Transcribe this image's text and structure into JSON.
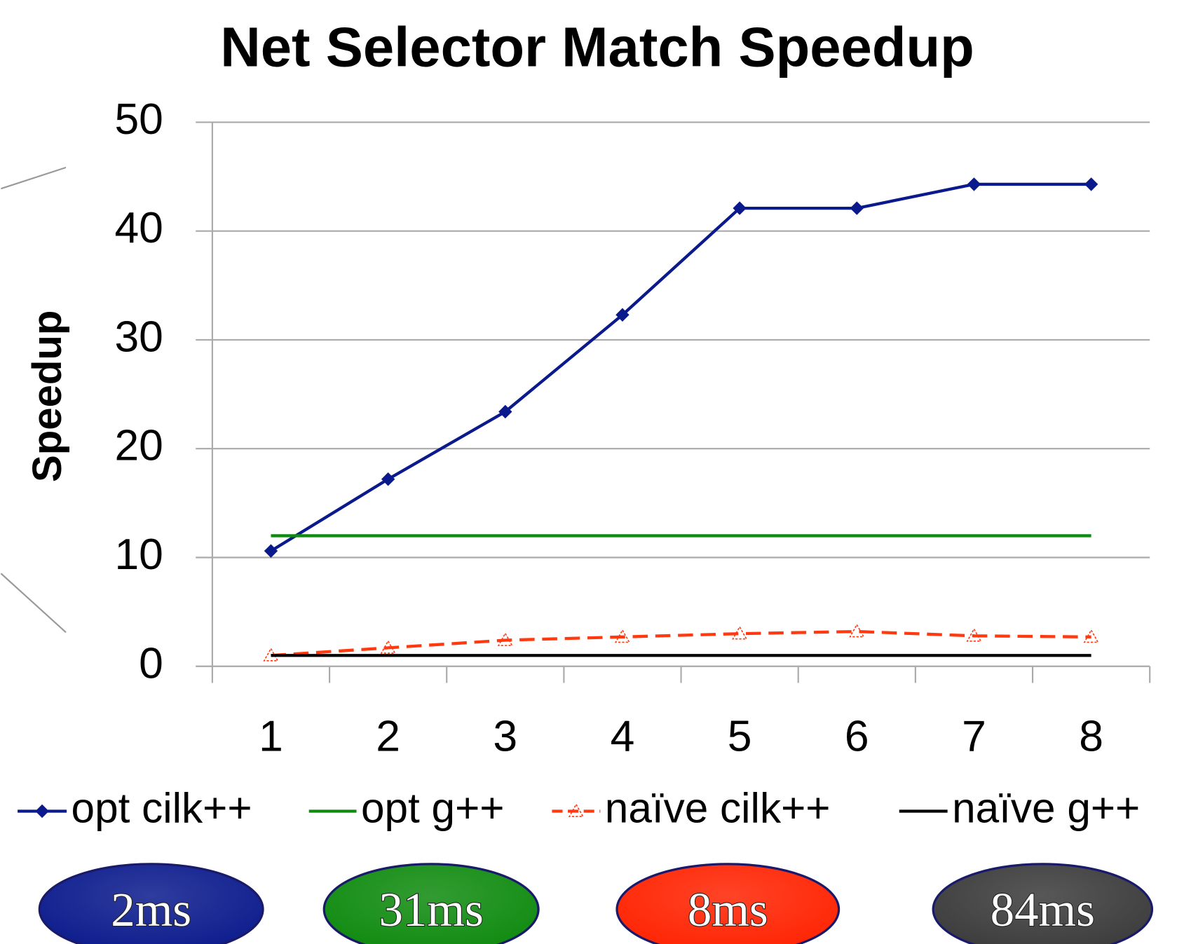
{
  "chart_data": {
    "type": "line",
    "title": "Net Selector Match Speedup",
    "y_label": "Speedup",
    "categories": [
      "1",
      "2",
      "3",
      "4",
      "5",
      "6",
      "7",
      "8"
    ],
    "series": [
      {
        "name": "opt cilk++",
        "color": "#0a1a8c",
        "marker": "diamond",
        "dash": false,
        "values": [
          10.6,
          17.2,
          23.4,
          32.3,
          42.1,
          42.1,
          44.3,
          44.3
        ]
      },
      {
        "name": "opt g++",
        "color": "#0e8a0e",
        "marker": "none",
        "dash": false,
        "values": [
          12,
          12,
          12,
          12,
          12,
          12,
          12,
          12
        ]
      },
      {
        "name": "naïve cilk++",
        "color": "#ff3a10",
        "marker": "triangle",
        "dash": true,
        "values": [
          1.0,
          1.7,
          2.4,
          2.7,
          3.0,
          3.2,
          2.8,
          2.7
        ]
      },
      {
        "name": "naïve g++",
        "color": "#000000",
        "marker": "none",
        "dash": false,
        "values": [
          1,
          1,
          1,
          1,
          1,
          1,
          1,
          1
        ]
      }
    ],
    "annotations": [
      {
        "text": "2ms",
        "color": "#0a1a8c"
      },
      {
        "text": "31ms",
        "color": "#0e8a0e"
      },
      {
        "text": "8ms",
        "color": "#ff2200"
      },
      {
        "text": "84ms",
        "color": "#3a3a3a"
      }
    ],
    "ylim": [
      0,
      50
    ],
    "yticks": [
      0,
      10,
      20,
      30,
      40,
      50
    ],
    "grid": true
  }
}
